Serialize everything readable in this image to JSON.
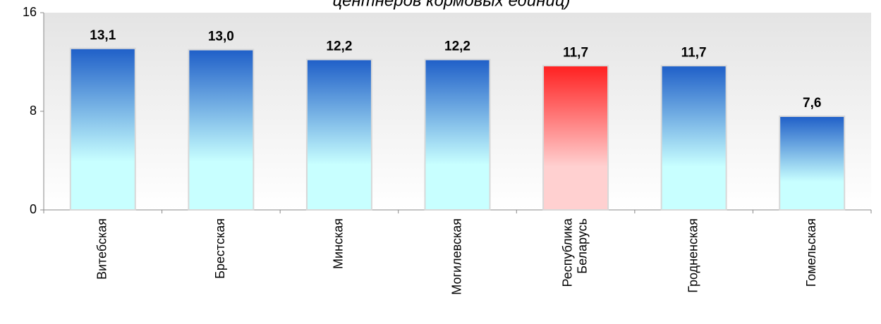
{
  "chart_data": {
    "type": "bar",
    "title": "центнеров кормовых единиц)",
    "categories": [
      "Витебская",
      "Брестская",
      "Минская",
      "Могилевская",
      "Республика Беларусь",
      "Гродненская",
      "Гомельская"
    ],
    "values": [
      13.1,
      13.0,
      12.2,
      12.2,
      11.7,
      11.7,
      7.6
    ],
    "value_labels": [
      "13,1",
      "13,0",
      "12,2",
      "12,2",
      "11,7",
      "11,7",
      "7,6"
    ],
    "colors": [
      "#1f5fc8",
      "#1f5fc8",
      "#1f5fc8",
      "#1f5fc8",
      "#ff2020",
      "#1f5fc8",
      "#1f5fc8"
    ],
    "ylim": [
      0,
      16
    ],
    "yticks": [
      0,
      8,
      16
    ]
  }
}
